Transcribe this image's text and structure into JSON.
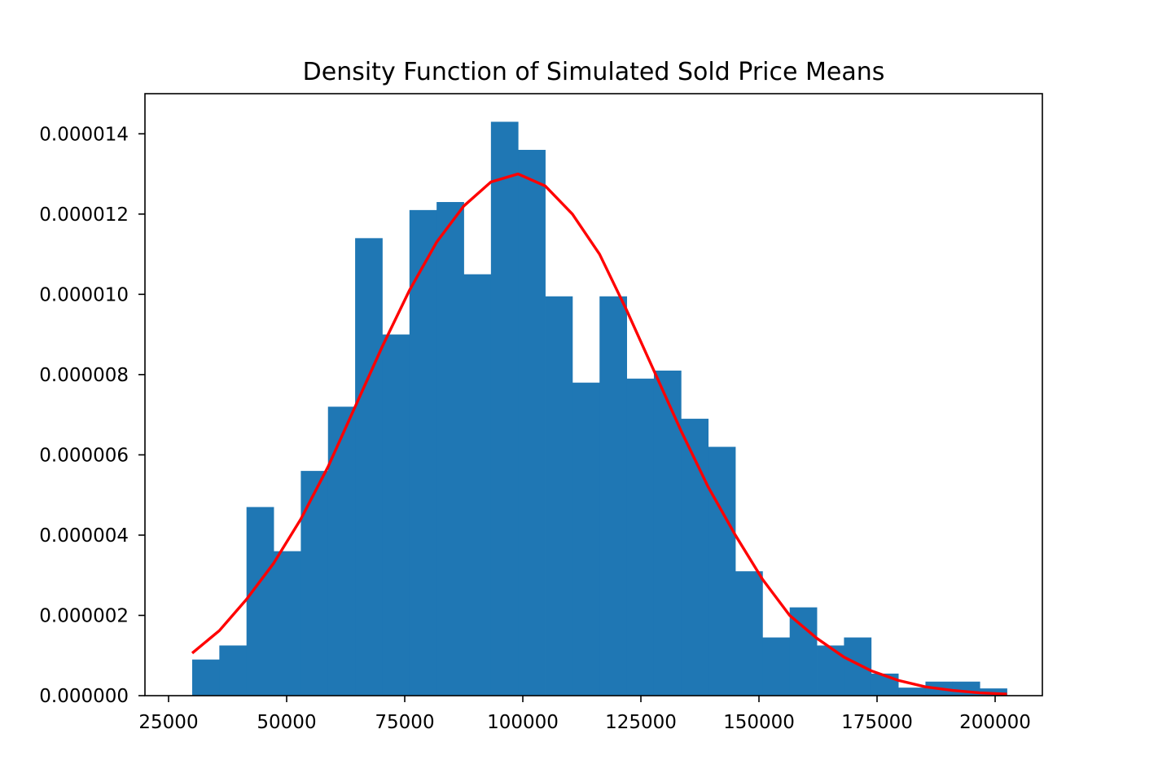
{
  "chart_data": {
    "type": "bar",
    "title": "Density Function of Simulated Sold Price Means",
    "xlabel": "",
    "ylabel": "",
    "xlim": [
      20000,
      210000
    ],
    "ylim": [
      0,
      1.5e-05
    ],
    "grid": false,
    "legend": "none",
    "x_ticks": [
      25000,
      50000,
      75000,
      100000,
      125000,
      150000,
      175000,
      200000
    ],
    "x_tick_labels": [
      "25000",
      "50000",
      "75000",
      "100000",
      "125000",
      "150000",
      "175000",
      "200000"
    ],
    "y_ticks": [
      0,
      2e-06,
      4e-06,
      6e-06,
      8e-06,
      1e-05,
      1.2e-05,
      1.4e-05
    ],
    "y_tick_labels": [
      "0.000000",
      "0.000002",
      "0.000004",
      "0.000006",
      "0.000008",
      "0.000010",
      "0.000012",
      "0.000014"
    ],
    "histogram": {
      "color": "#1f77b4",
      "bin_edges": [
        30000,
        35750,
        41500,
        47250,
        53000,
        58750,
        64500,
        70250,
        76000,
        81750,
        87500,
        93250,
        99000,
        104750,
        110500,
        116250,
        122000,
        127750,
        133500,
        139250,
        145000,
        150750,
        156500,
        162250,
        168000,
        173750,
        179500,
        185250,
        191000,
        196750,
        202500
      ],
      "values": [
        9e-07,
        1.25e-06,
        4.7e-06,
        3.6e-06,
        5.6e-06,
        7.2e-06,
        1.14e-05,
        9e-06,
        1.21e-05,
        1.23e-05,
        1.05e-05,
        1.43e-05,
        1.36e-05,
        9.95e-06,
        7.8e-06,
        9.95e-06,
        7.9e-06,
        8.1e-06,
        6.9e-06,
        6.2e-06,
        3.1e-06,
        1.45e-06,
        2.2e-06,
        1.25e-06,
        1.45e-06,
        5.5e-07,
        2e-07,
        3.5e-07,
        3.5e-07,
        1.8e-07
      ]
    },
    "density_curve": {
      "color": "#ff0000",
      "x": [
        30000,
        35750,
        41500,
        47250,
        53000,
        58750,
        64500,
        70250,
        76000,
        81750,
        87500,
        93250,
        99000,
        104750,
        110500,
        116250,
        122000,
        127750,
        133500,
        139250,
        145000,
        150750,
        156500,
        162250,
        168000,
        173750,
        179500,
        185250,
        191000,
        196750,
        202500
      ],
      "y": [
        1.06e-06,
        1.62e-06,
        2.4e-06,
        3.3e-06,
        4.4e-06,
        5.7e-06,
        7.2e-06,
        8.7e-06,
        1.01e-05,
        1.13e-05,
        1.22e-05,
        1.28e-05,
        1.3e-05,
        1.27e-05,
        1.2e-05,
        1.1e-05,
        9.6e-06,
        8.1e-06,
        6.6e-06,
        5.2e-06,
        4e-06,
        2.9e-06,
        2e-06,
        1.43e-06,
        9.6e-07,
        6.2e-07,
        3.8e-07,
        2.2e-07,
        1.3e-07,
        7e-08,
        4e-08
      ]
    }
  }
}
